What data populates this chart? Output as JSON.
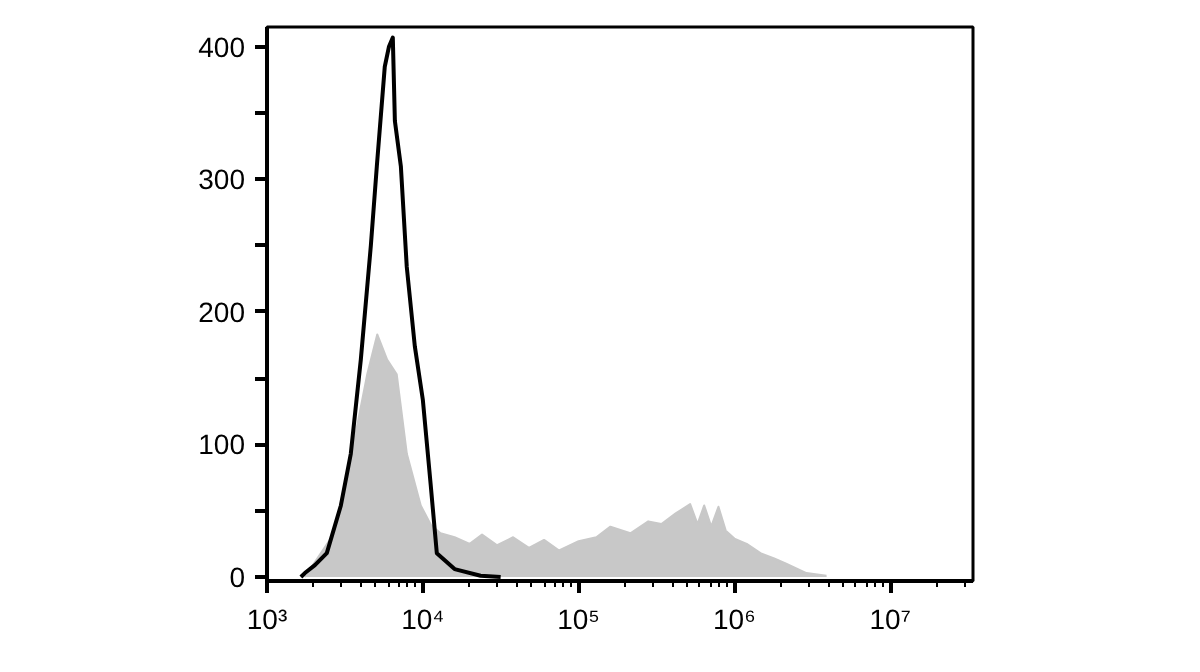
{
  "chart_data": {
    "type": "area",
    "log": "x",
    "grid": false,
    "xlim": [
      1000,
      34000000
    ],
    "ylim": [
      -3,
      415
    ],
    "xticks": [
      {
        "value": 1000,
        "label": "10³"
      },
      {
        "value": 10000,
        "label": "10⁴"
      },
      {
        "value": 100000,
        "label": "10⁵"
      },
      {
        "value": 1000000,
        "label": "10⁶"
      },
      {
        "value": 10000000,
        "label": "10⁷"
      }
    ],
    "yticks": [
      0,
      {
        "value": 50,
        "label": null
      },
      100,
      {
        "value": 150,
        "label": null
      },
      200,
      {
        "value": 250,
        "label": null
      },
      300,
      {
        "value": 350,
        "label": null
      },
      400
    ],
    "series": [
      {
        "color": "#c8c8c8",
        "x": [
          1750,
          2700,
          3700,
          4400,
          5100,
          5900,
          6800,
          7900,
          9700,
          11300,
          13000,
          16000,
          20000,
          24000,
          30000,
          38000,
          48000,
          60000,
          75000,
          100000,
          130000,
          160000,
          215000,
          280000,
          340000,
          420000,
          520000,
          580000,
          640000,
          710000,
          790000,
          880000,
          1000000,
          1200000,
          1470000,
          1800000,
          2150000,
          2900000,
          3900000
        ],
        "values": [
          0,
          33,
          108,
          153,
          183,
          164,
          153,
          93,
          54,
          39,
          33,
          30,
          25,
          32,
          24,
          30,
          22,
          28,
          20,
          27,
          30,
          38,
          33,
          42,
          40,
          48,
          55,
          40,
          54,
          38,
          53,
          35,
          29,
          25,
          18,
          14,
          10,
          3,
          1
        ]
      },
      {
        "type": "line",
        "color": "#000000",
        "x": [
          1650,
          1750,
          2030,
          2420,
          2980,
          3450,
          4000,
          4640,
          5070,
          5700,
          6060,
          6420,
          6620,
          7230,
          7890,
          8890,
          10000,
          11250,
          12300,
          16000,
          23500,
          31600
        ],
        "values": [
          0,
          3,
          9,
          18,
          54,
          93,
          164,
          250,
          310,
          385,
          400,
          407,
          344,
          310,
          234,
          174,
          134,
          69,
          18,
          6,
          1,
          0
        ]
      }
    ]
  }
}
